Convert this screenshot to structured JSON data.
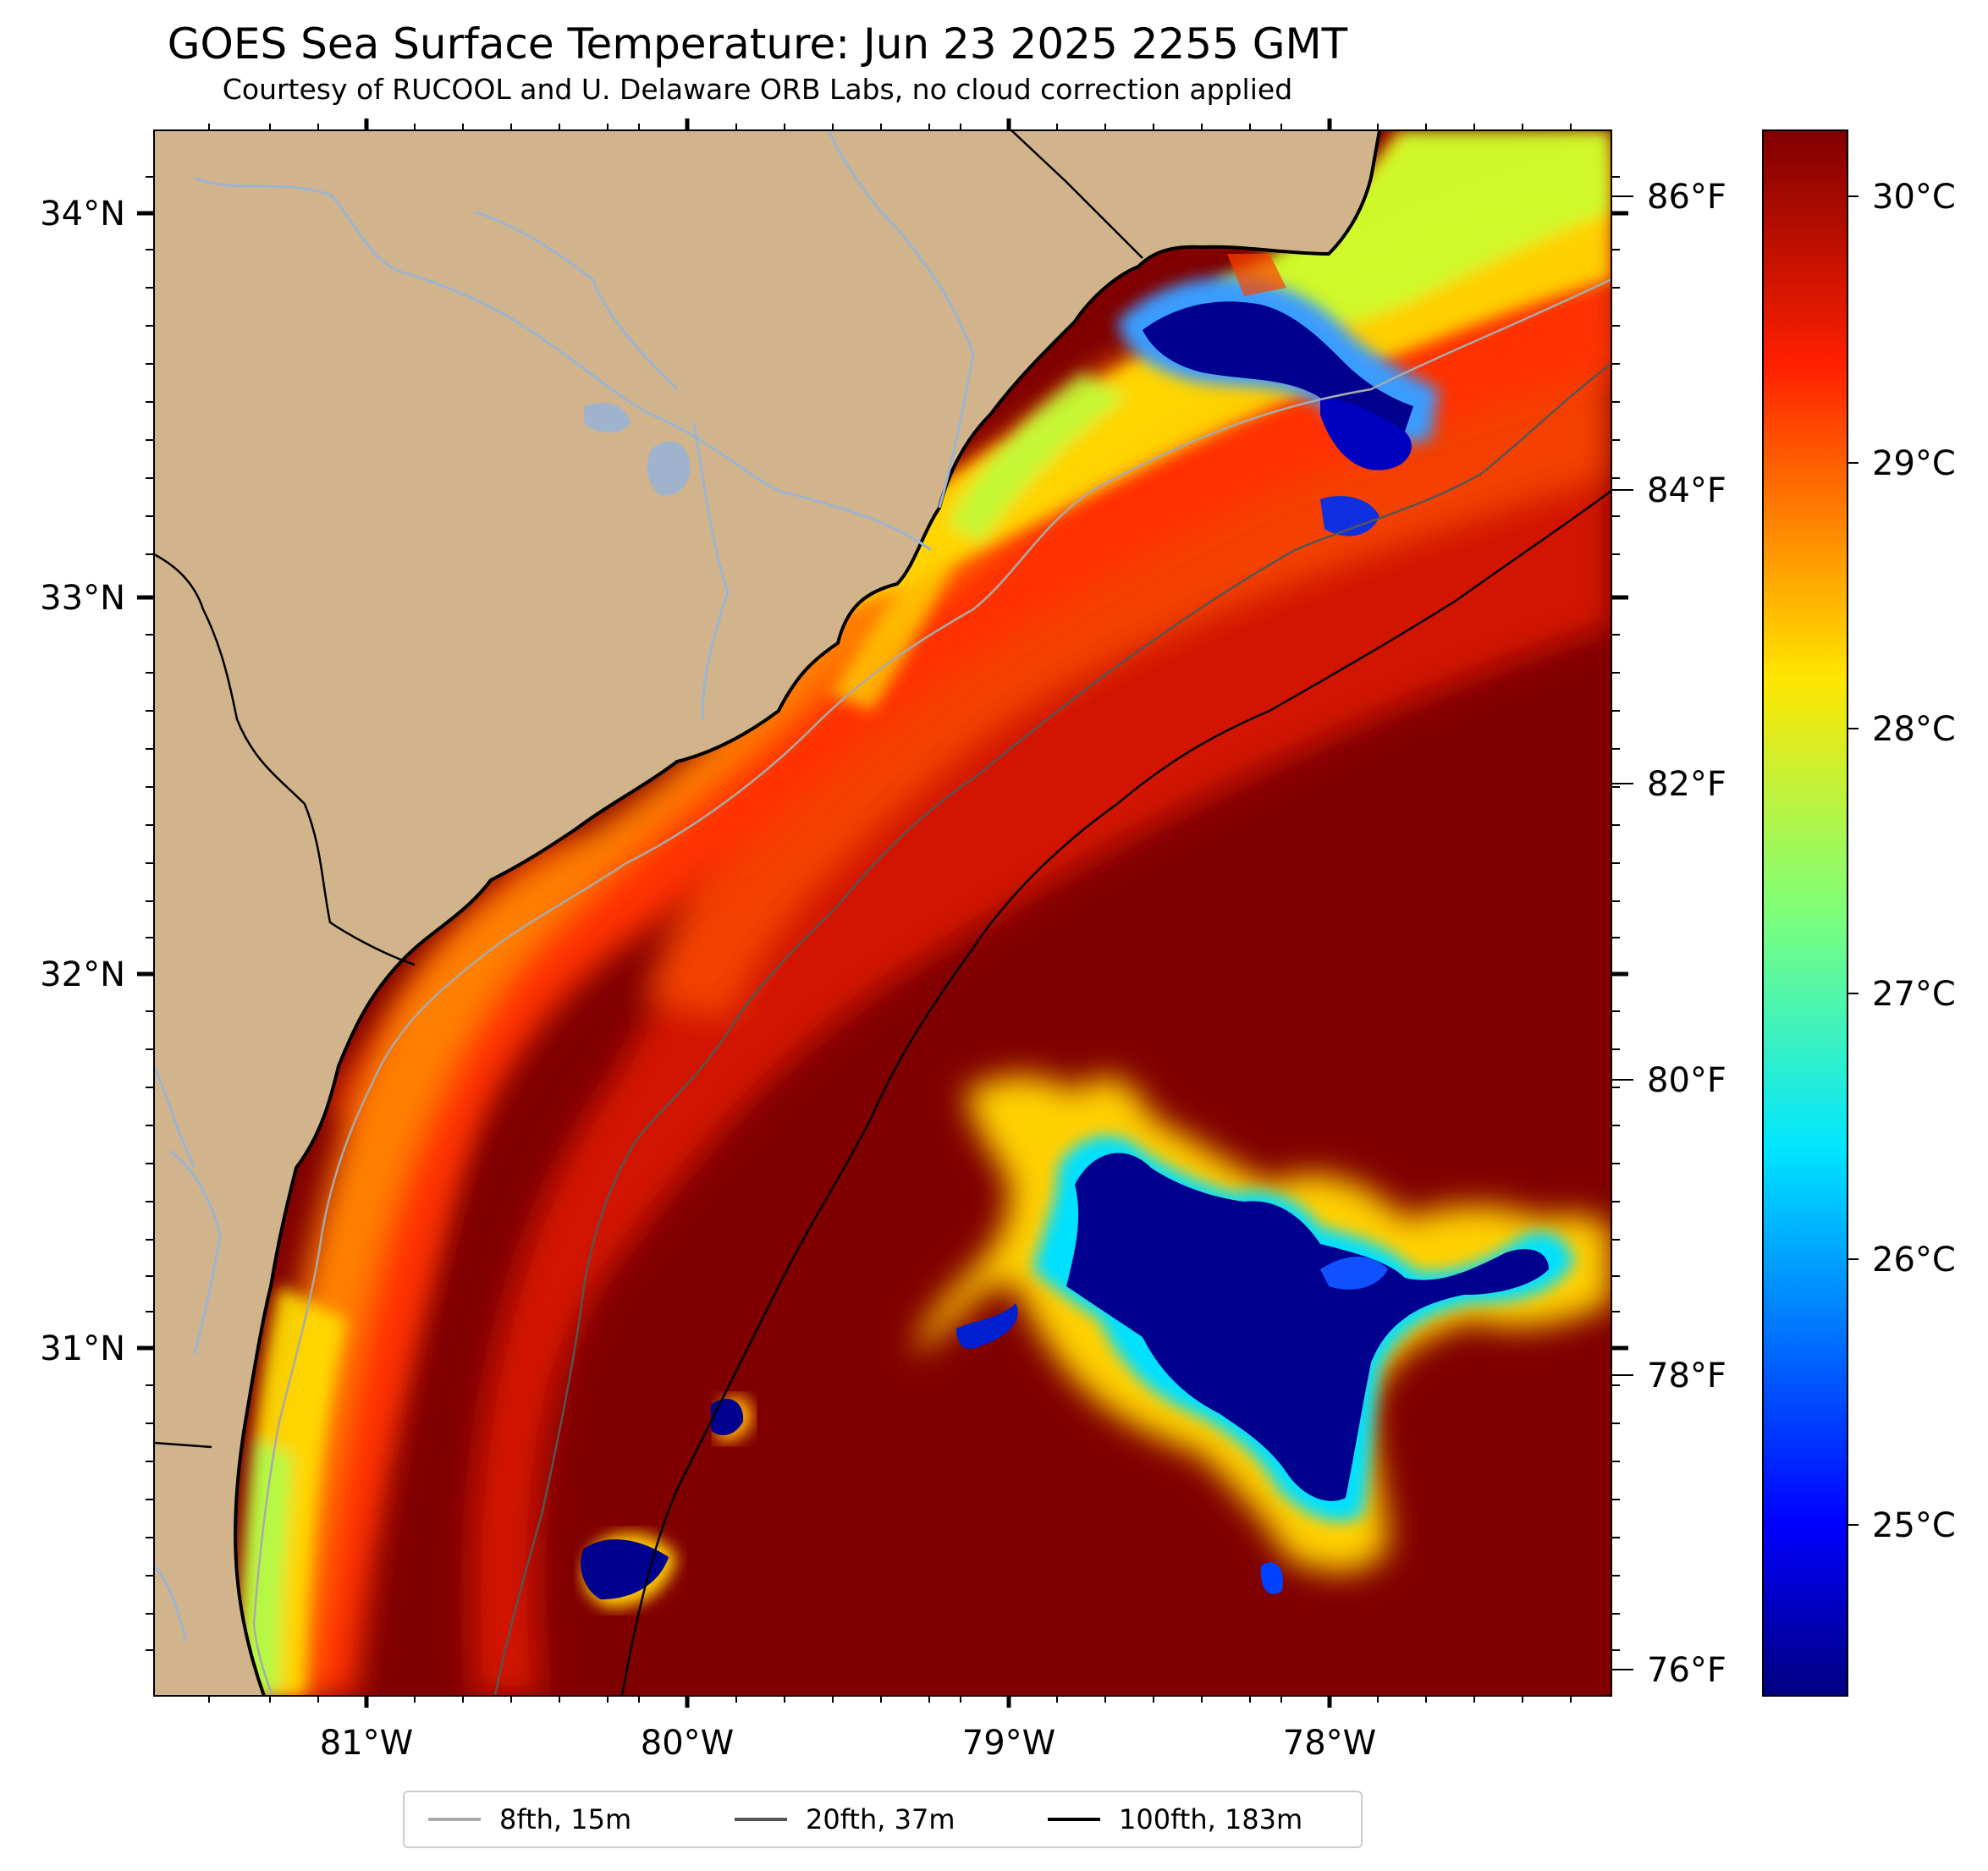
{
  "title": "GOES Sea Surface Temperature: Jun 23 2025 2255 GMT",
  "subtitle": "Courtesy of RUCOOL and U. Delaware ORB Labs, no cloud correction applied",
  "map": {
    "lon_labels": [
      "81°W",
      "80°W",
      "79°W",
      "78°W"
    ],
    "lat_labels": [
      "34°N",
      "33°N",
      "32°N",
      "31°N"
    ],
    "fahrenheit_labels": [
      "86°F",
      "84°F",
      "82°F",
      "80°F",
      "78°F",
      "76°F"
    ],
    "colors": {
      "land": "#d2b48c",
      "ocean_warm": "#800000",
      "cold_pool": "#00008f",
      "rivers": "#9db4d0"
    }
  },
  "colorbar": {
    "colormap": "jet",
    "unit_labels": [
      "30°C",
      "29°C",
      "28°C",
      "27°C",
      "26°C",
      "25°C"
    ],
    "range_c": [
      24.3,
      30.2
    ]
  },
  "legend": {
    "items": [
      {
        "label": "8fth, 15m",
        "color": "#aaaaaa"
      },
      {
        "label": "20fth, 37m",
        "color": "#555555"
      },
      {
        "label": "100fth, 183m",
        "color": "#000000"
      }
    ]
  }
}
